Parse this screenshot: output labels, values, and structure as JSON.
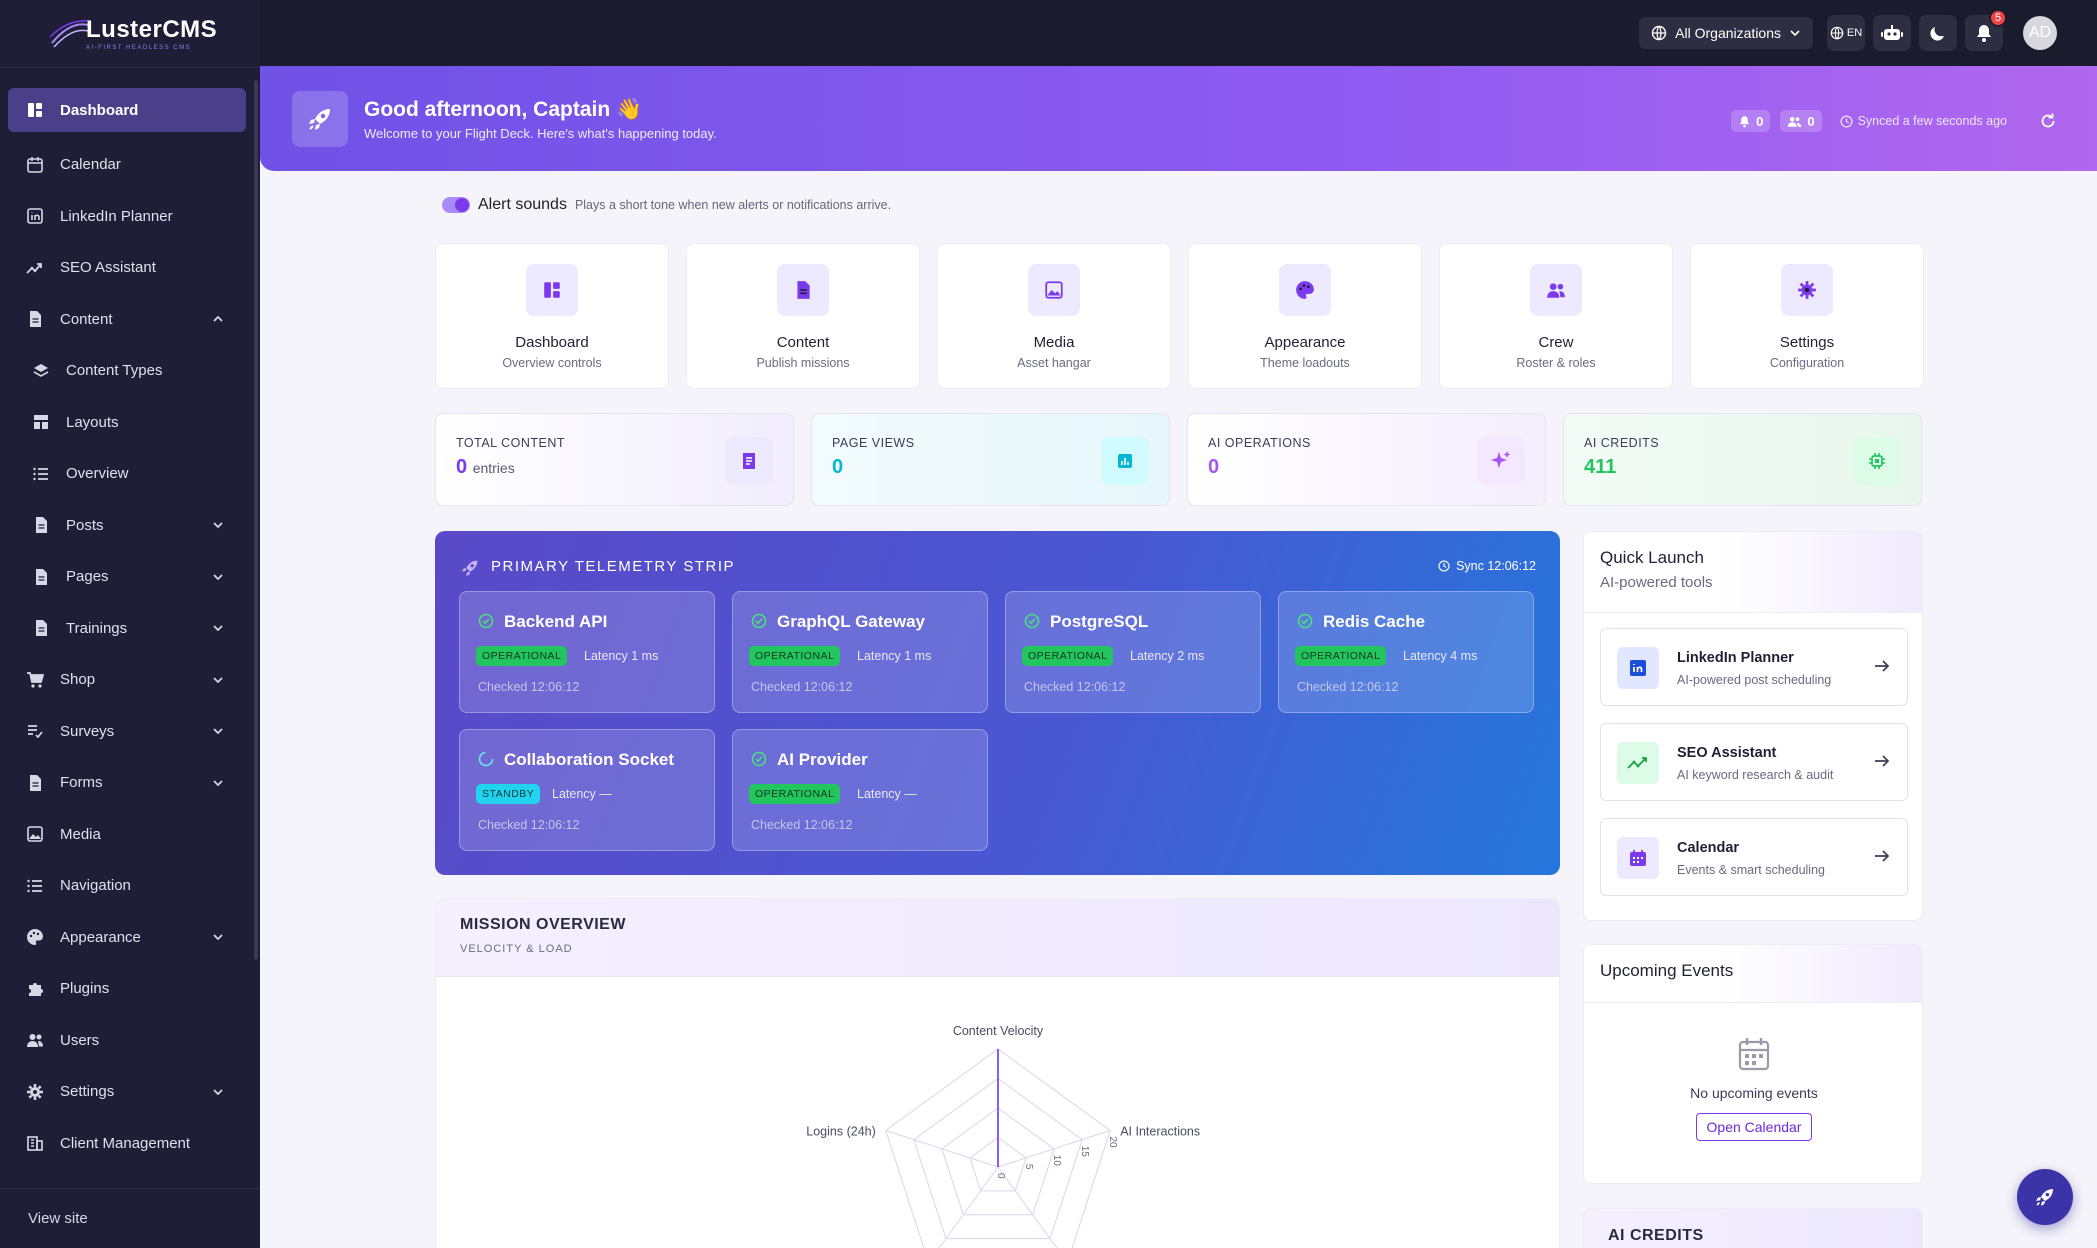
{
  "brand": {
    "name": "LusterCMS",
    "tagline": "AI-FIRST HEADLESS CMS"
  },
  "sidebar": {
    "items": [
      {
        "label": "Dashboard",
        "icon": "dashboard-icon",
        "active": true
      },
      {
        "label": "Calendar",
        "icon": "calendar-icon"
      },
      {
        "label": "LinkedIn Planner",
        "icon": "linkedin-icon"
      },
      {
        "label": "SEO Assistant",
        "icon": "trending-icon"
      },
      {
        "label": "Content",
        "icon": "document-icon",
        "expanded": true
      },
      {
        "label": "Content Types",
        "icon": "layers-icon",
        "sub": true
      },
      {
        "label": "Layouts",
        "icon": "grid-icon",
        "sub": true
      },
      {
        "label": "Overview",
        "icon": "list-icon",
        "sub": true
      },
      {
        "label": "Posts",
        "icon": "document-icon",
        "sub": true,
        "chevron": true
      },
      {
        "label": "Pages",
        "icon": "document-icon",
        "sub": true,
        "chevron": true
      },
      {
        "label": "Trainings",
        "icon": "document-icon",
        "sub": true,
        "chevron": true
      },
      {
        "label": "Shop",
        "icon": "cart-icon",
        "chevron": true
      },
      {
        "label": "Surveys",
        "icon": "checklist-icon",
        "chevron": true
      },
      {
        "label": "Forms",
        "icon": "document-icon",
        "chevron": true
      },
      {
        "label": "Media",
        "icon": "image-icon"
      },
      {
        "label": "Navigation",
        "icon": "list-icon"
      },
      {
        "label": "Appearance",
        "icon": "palette-icon",
        "chevron": true
      },
      {
        "label": "Plugins",
        "icon": "puzzle-icon"
      },
      {
        "label": "Users",
        "icon": "users-icon"
      },
      {
        "label": "Settings",
        "icon": "gear-icon",
        "chevron": true
      },
      {
        "label": "Client Management",
        "icon": "building-icon"
      }
    ],
    "footer": "View site"
  },
  "topbar": {
    "org": "All Organizations",
    "lang": "EN",
    "notifications": "5",
    "avatar": "AD"
  },
  "hero": {
    "title": "Good afternoon, Captain 👋",
    "subtitle": "Welcome to your Flight Deck. Here's what's happening today.",
    "alerts": "0",
    "users": "0",
    "synced": "Synced a few seconds ago"
  },
  "alert_sounds": {
    "label": "Alert sounds",
    "desc": "Plays a short tone when new alerts or notifications arrive.",
    "enabled": true
  },
  "quick_cards": [
    {
      "title": "Dashboard",
      "sub": "Overview controls",
      "icon": "dashboard-icon"
    },
    {
      "title": "Content",
      "sub": "Publish missions",
      "icon": "document-icon"
    },
    {
      "title": "Media",
      "sub": "Asset hangar",
      "icon": "image-icon"
    },
    {
      "title": "Appearance",
      "sub": "Theme loadouts",
      "icon": "palette-icon"
    },
    {
      "title": "Crew",
      "sub": "Roster & roles",
      "icon": "users-icon"
    },
    {
      "title": "Settings",
      "sub": "Configuration",
      "icon": "gear-icon"
    }
  ],
  "stats": [
    {
      "label": "TOTAL CONTENT",
      "value": "0",
      "unit": "entries",
      "color": "#7c3aed"
    },
    {
      "label": "PAGE VIEWS",
      "value": "0",
      "unit": "",
      "color": "#06b6d4"
    },
    {
      "label": "AI OPERATIONS",
      "value": "0",
      "unit": "",
      "color": "#a855f7"
    },
    {
      "label": "AI CREDITS",
      "value": "411",
      "unit": "",
      "color": "#22c55e"
    }
  ],
  "telemetry": {
    "title": "PRIMARY TELEMETRY STRIP",
    "sync": "Sync 12:06:12",
    "services": [
      {
        "name": "Backend API",
        "status": "OPERATIONAL",
        "latency": "Latency 1 ms",
        "checked": "Checked 12:06:12"
      },
      {
        "name": "GraphQL Gateway",
        "status": "OPERATIONAL",
        "latency": "Latency 1 ms",
        "checked": "Checked 12:06:12"
      },
      {
        "name": "PostgreSQL",
        "status": "OPERATIONAL",
        "latency": "Latency 2 ms",
        "checked": "Checked 12:06:12"
      },
      {
        "name": "Redis Cache",
        "status": "OPERATIONAL",
        "latency": "Latency 4 ms",
        "checked": "Checked 12:06:12"
      },
      {
        "name": "Collaboration Socket",
        "status": "STANDBY",
        "latency": "Latency —",
        "checked": "Checked 12:06:12"
      },
      {
        "name": "AI Provider",
        "status": "OPERATIONAL",
        "latency": "Latency —",
        "checked": "Checked 12:06:12"
      }
    ]
  },
  "mission": {
    "title": "MISSION OVERVIEW",
    "sub": "VELOCITY & LOAD",
    "radar_labels": [
      "Content Velocity",
      "AI Interactions",
      "Logins (24h)"
    ],
    "radar_ticks": [
      "0",
      "5",
      "10",
      "15",
      "20"
    ]
  },
  "quick_launch": {
    "title": "Quick Launch",
    "sub": "AI-powered tools",
    "items": [
      {
        "name": "LinkedIn Planner",
        "desc": "AI-powered post scheduling",
        "color": "#1d4ed8"
      },
      {
        "name": "SEO Assistant",
        "desc": "AI keyword research & audit",
        "color": "#16a34a"
      },
      {
        "name": "Calendar",
        "desc": "Events & smart scheduling",
        "color": "#7c3aed"
      }
    ]
  },
  "events": {
    "title": "Upcoming Events",
    "empty": "No upcoming events",
    "button": "Open Calendar"
  },
  "credits_panel": {
    "title": "AI CREDITS"
  }
}
